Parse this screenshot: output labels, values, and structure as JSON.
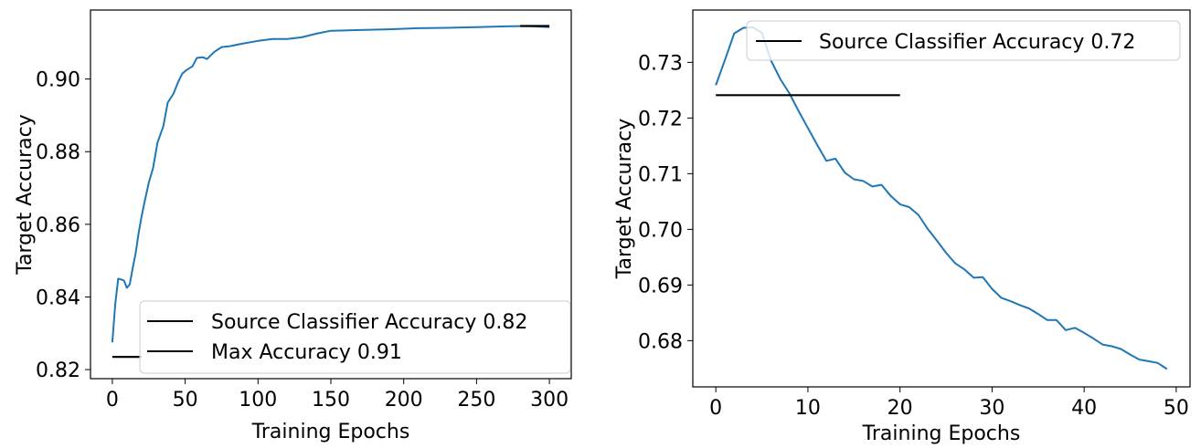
{
  "chart_data": [
    {
      "type": "line",
      "title": "",
      "xlabel": "Training Epochs",
      "ylabel": "Target Accuracy",
      "xlim": [
        -15,
        315
      ],
      "ylim": [
        0.8175,
        0.919
      ],
      "xticks": [
        0,
        50,
        100,
        150,
        200,
        250,
        300
      ],
      "yticks": [
        0.82,
        0.84,
        0.86,
        0.88,
        0.9
      ],
      "ytick_labels": [
        "0.82",
        "0.84",
        "0.86",
        "0.88",
        "0.90"
      ],
      "grid": false,
      "legend_position": "lower right",
      "legend": [
        "Source Classifier Accuracy 0.82",
        "Max Accuracy 0.91"
      ],
      "series": [
        {
          "name": "Target Accuracy",
          "color": "#1f77b4",
          "x": [
            0,
            2,
            4,
            6,
            8,
            10,
            12,
            14,
            16,
            18,
            20,
            22,
            25,
            28,
            31,
            35,
            38,
            42,
            45,
            48,
            51,
            55,
            58,
            62,
            65,
            70,
            75,
            80,
            90,
            100,
            110,
            120,
            130,
            140,
            150,
            170,
            190,
            210,
            230,
            250,
            270,
            285,
            300
          ],
          "y": [
            0.8275,
            0.838,
            0.845,
            0.8448,
            0.8445,
            0.8425,
            0.8435,
            0.848,
            0.852,
            0.8575,
            0.862,
            0.866,
            0.8715,
            0.8755,
            0.8825,
            0.887,
            0.8935,
            0.896,
            0.899,
            0.9015,
            0.9025,
            0.9035,
            0.9058,
            0.906,
            0.9055,
            0.9075,
            0.9088,
            0.909,
            0.9098,
            0.9105,
            0.911,
            0.911,
            0.9115,
            0.9125,
            0.9133,
            0.9135,
            0.9137,
            0.914,
            0.9141,
            0.9143,
            0.9145,
            0.9146,
            0.9143
          ]
        },
        {
          "name": "Source Classifier Accuracy 0.82",
          "color": "#000000",
          "x": [
            0,
            20
          ],
          "y": [
            0.8235,
            0.8235
          ]
        },
        {
          "name": "Max Accuracy 0.91",
          "color": "#000000",
          "x": [
            280,
            300
          ],
          "y": [
            0.9146,
            0.9146
          ]
        }
      ]
    },
    {
      "type": "line",
      "title": "",
      "xlabel": "Training Epochs",
      "ylabel": "Target Accuracy",
      "xlim": [
        -2.5,
        51.5
      ],
      "ylim": [
        0.6717,
        0.7394
      ],
      "xticks": [
        0,
        10,
        20,
        30,
        40,
        50
      ],
      "yticks": [
        0.68,
        0.69,
        0.7,
        0.71,
        0.72,
        0.73
      ],
      "ytick_labels": [
        "0.68",
        "0.69",
        "0.70",
        "0.71",
        "0.72",
        "0.73"
      ],
      "grid": false,
      "legend_position": "upper right",
      "legend": [
        "Source Classifier Accuracy 0.72"
      ],
      "series": [
        {
          "name": "Target Accuracy",
          "color": "#1f77b4",
          "x": [
            0,
            1,
            2,
            3,
            4,
            5,
            6,
            7,
            8,
            9,
            10,
            11,
            12,
            13,
            14,
            15,
            16,
            17,
            18,
            19,
            20,
            21,
            22,
            23,
            24,
            25,
            26,
            27,
            28,
            29,
            30,
            31,
            32,
            33,
            34,
            35,
            36,
            37,
            38,
            39,
            40,
            41,
            42,
            43,
            44,
            45,
            46,
            47,
            48,
            49
          ],
          "y": [
            0.7259,
            0.7305,
            0.7352,
            0.7362,
            0.7363,
            0.7353,
            0.7303,
            0.727,
            0.7244,
            0.7212,
            0.7182,
            0.7152,
            0.7123,
            0.7127,
            0.7102,
            0.709,
            0.7087,
            0.7077,
            0.708,
            0.706,
            0.7045,
            0.704,
            0.7026,
            0.7001,
            0.698,
            0.6958,
            0.6939,
            0.6928,
            0.6913,
            0.6914,
            0.6893,
            0.6877,
            0.6871,
            0.6864,
            0.6858,
            0.6848,
            0.6837,
            0.6837,
            0.6819,
            0.6823,
            0.6814,
            0.6804,
            0.6793,
            0.679,
            0.6785,
            0.6775,
            0.6766,
            0.6763,
            0.676,
            0.6749
          ]
        },
        {
          "name": "Source Classifier Accuracy 0.72",
          "color": "#000000",
          "x": [
            0,
            20
          ],
          "y": [
            0.7241,
            0.7241
          ]
        }
      ]
    }
  ]
}
